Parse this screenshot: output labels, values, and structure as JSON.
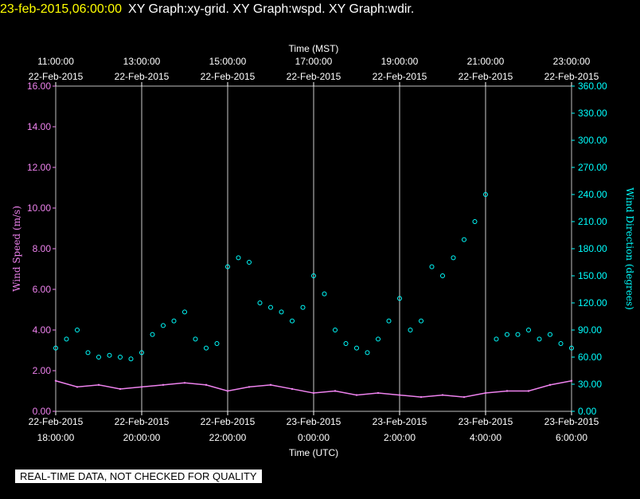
{
  "header": {
    "timestamp": "23-feb-2015,06:00:00",
    "graphs": "XY Graph:xy-grid.  XY Graph:wspd.  XY Graph:wdir."
  },
  "footer": {
    "qa_label": "REAL-TIME DATA, NOT CHECKED FOR QUALITY"
  },
  "colors": {
    "wind_speed": "#ee82ee",
    "wind_direction": "#00ffff",
    "grid": "#ffffff",
    "timestamp": "#ffff00"
  },
  "chart_data": {
    "type": "scatter",
    "top_axis_title": "Time (MST)",
    "xlabel": "Time (UTC)",
    "ylabel_left": "Wind Speed (m/s)",
    "ylabel_right": "Wind Direction (degrees)",
    "x_unit": "hours since 22-Feb-2015 18:00 UTC",
    "xlim": [
      0,
      12
    ],
    "ylim_left": [
      0,
      16
    ],
    "ylim_right": [
      0,
      360
    ],
    "left_ticks": [
      "0.00",
      "2.00",
      "4.00",
      "6.00",
      "8.00",
      "10.00",
      "12.00",
      "14.00",
      "16.00"
    ],
    "right_ticks": [
      "0.00",
      "30.00",
      "60.00",
      "90.00",
      "120.00",
      "150.00",
      "180.00",
      "210.00",
      "240.00",
      "270.00",
      "300.00",
      "330.00",
      "360.00"
    ],
    "top_ticks": [
      {
        "x": 0,
        "time": "11:00:00",
        "date": "22-Feb-2015"
      },
      {
        "x": 2,
        "time": "13:00:00",
        "date": "22-Feb-2015"
      },
      {
        "x": 4,
        "time": "15:00:00",
        "date": "22-Feb-2015"
      },
      {
        "x": 6,
        "time": "17:00:00",
        "date": "22-Feb-2015"
      },
      {
        "x": 8,
        "time": "19:00:00",
        "date": "22-Feb-2015"
      },
      {
        "x": 10,
        "time": "21:00:00",
        "date": "22-Feb-2015"
      },
      {
        "x": 12,
        "time": "23:00:00",
        "date": "22-Feb-2015"
      }
    ],
    "bottom_ticks": [
      {
        "x": 0,
        "date": "22-Feb-2015",
        "time": "18:00:00"
      },
      {
        "x": 2,
        "date": "22-Feb-2015",
        "time": "20:00:00"
      },
      {
        "x": 4,
        "date": "22-Feb-2015",
        "time": "22:00:00"
      },
      {
        "x": 6,
        "date": "23-Feb-2015",
        "time": "0:00:00"
      },
      {
        "x": 8,
        "date": "23-Feb-2015",
        "time": "2:00:00"
      },
      {
        "x": 10,
        "date": "23-Feb-2015",
        "time": "4:00:00"
      },
      {
        "x": 12,
        "date": "23-Feb-2015",
        "time": "6:00:00"
      }
    ],
    "grid": true,
    "series": [
      {
        "name": "Wind Speed (m/s)",
        "axis": "left",
        "style": "line",
        "x": [
          0,
          0.5,
          1,
          1.5,
          2,
          2.5,
          3,
          3.5,
          4,
          4.5,
          5,
          5.5,
          6,
          6.5,
          7,
          7.5,
          8,
          8.5,
          9,
          9.5,
          10,
          10.5,
          11,
          11.5,
          12
        ],
        "y": [
          1.5,
          1.2,
          1.3,
          1.1,
          1.2,
          1.3,
          1.4,
          1.3,
          1.0,
          1.2,
          1.3,
          1.1,
          0.9,
          1.0,
          0.8,
          0.9,
          0.8,
          0.7,
          0.8,
          0.7,
          0.9,
          1.0,
          1.0,
          1.3,
          1.5
        ]
      },
      {
        "name": "Wind Direction (degrees)",
        "axis": "right",
        "style": "points",
        "x": [
          0,
          0.25,
          0.5,
          0.75,
          1,
          1.25,
          1.5,
          1.75,
          2,
          2.25,
          2.5,
          2.75,
          3,
          3.25,
          3.5,
          3.75,
          4,
          4.25,
          4.5,
          4.75,
          5,
          5.25,
          5.5,
          5.75,
          6,
          6.25,
          6.5,
          6.75,
          7,
          7.25,
          7.5,
          7.75,
          8,
          8.25,
          8.5,
          8.75,
          9,
          9.25,
          9.5,
          9.75,
          10,
          10.25,
          10.5,
          10.75,
          11,
          11.25,
          11.5,
          11.75,
          12
        ],
        "y": [
          70,
          80,
          90,
          65,
          60,
          62,
          60,
          58,
          65,
          85,
          95,
          100,
          110,
          80,
          70,
          75,
          160,
          170,
          165,
          120,
          115,
          110,
          100,
          115,
          150,
          130,
          90,
          75,
          70,
          65,
          80,
          100,
          125,
          90,
          100,
          160,
          150,
          170,
          190,
          210,
          240,
          80,
          85,
          85,
          90,
          80,
          85,
          75,
          70
        ]
      }
    ]
  }
}
